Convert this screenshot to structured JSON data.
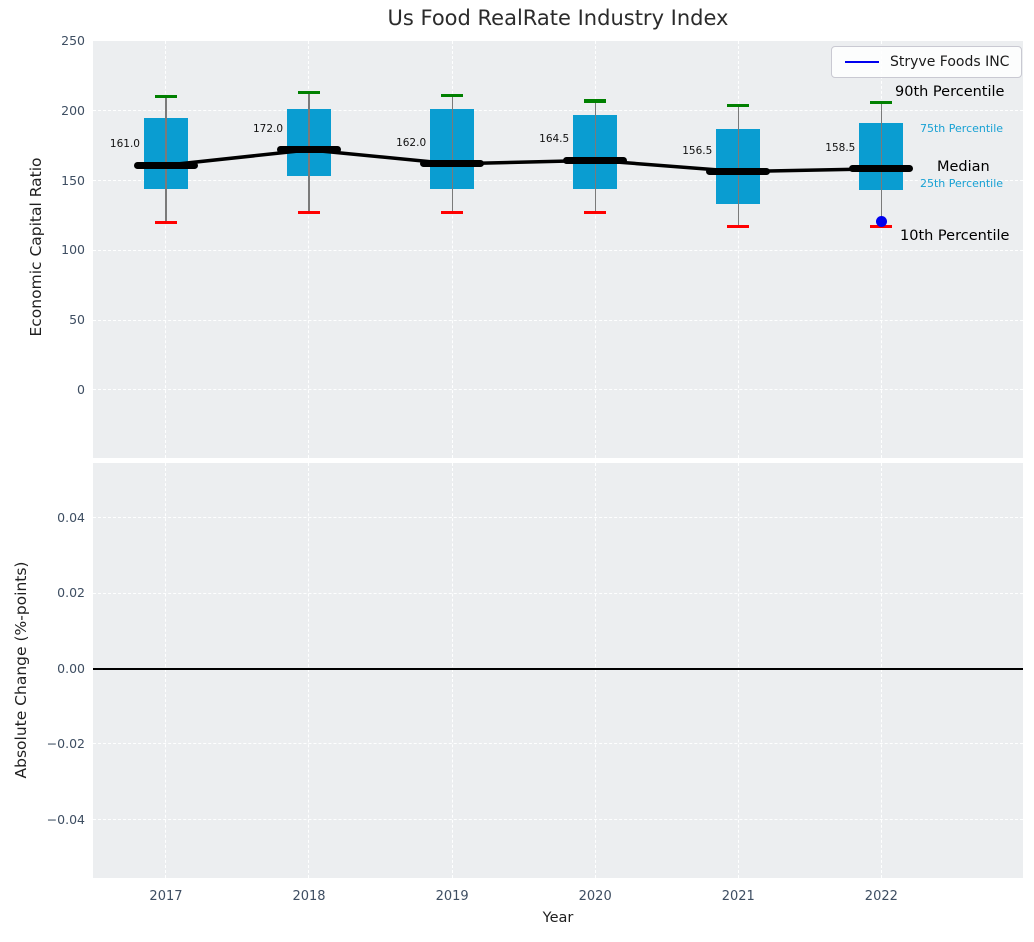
{
  "title": "Us Food RealRate Industry Index",
  "legend": {
    "label": "Stryve Foods INC"
  },
  "colors": {
    "box_fill": "#0a9dd1",
    "median_black": "#000000",
    "cap_top_green": "#008000",
    "cap_bottom_red": "#ff0000",
    "whisker_gray": "#7a7a7a",
    "series_blue": "#0000ee",
    "annotation_cyan": "#17a1d4",
    "axes_background": "#eceef0",
    "tick_text": "#3e4e62"
  },
  "chart_data": [
    {
      "type": "boxplot",
      "title": "Us Food RealRate Industry Index",
      "xlabel": "Year",
      "ylabel": "Economic Capital Ratio",
      "categories": [
        "2017",
        "2018",
        "2019",
        "2020",
        "2021",
        "2022"
      ],
      "ylim": [
        -48.7,
        250
      ],
      "xlim": [
        -0.51,
        5.99
      ],
      "grid": "white-dashed",
      "legend_position": "upper right",
      "yticks": [
        {
          "value": 250,
          "label": "250"
        },
        {
          "value": 200,
          "label": "200"
        },
        {
          "value": 150,
          "label": "150"
        },
        {
          "value": 100,
          "label": "100"
        },
        {
          "value": 50,
          "label": "50"
        },
        {
          "value": 0,
          "label": "0"
        }
      ],
      "boxes": [
        {
          "year": "2017",
          "p10": 120,
          "p25": 144,
          "median": 161.0,
          "p75": 195,
          "p90": 210,
          "median_label": "161.0"
        },
        {
          "year": "2018",
          "p10": 127,
          "p25": 153,
          "median": 172.0,
          "p75": 201,
          "p90": 213,
          "median_label": "172.0"
        },
        {
          "year": "2019",
          "p10": 127,
          "p25": 144,
          "median": 162.0,
          "p75": 201,
          "p90": 211,
          "median_label": "162.0"
        },
        {
          "year": "2020",
          "p10": 127,
          "p25": 144,
          "median": 164.5,
          "p75": 197,
          "p90": 207,
          "median_label": "164.5"
        },
        {
          "year": "2021",
          "p10": 117,
          "p25": 133,
          "median": 156.5,
          "p75": 187,
          "p90": 204,
          "median_label": "156.5"
        },
        {
          "year": "2022",
          "p10": 117,
          "p25": 143,
          "median": 158.5,
          "p75": 191,
          "p90": 206,
          "median_label": "158.5"
        }
      ],
      "median_trend_line": [
        161.0,
        172.0,
        162.0,
        164.5,
        156.5,
        158.5
      ],
      "series": [
        {
          "name": "Stryve Foods INC",
          "type": "scatter",
          "color_key": "series_blue",
          "points": [
            {
              "x": "2022",
              "y": 121
            }
          ]
        }
      ],
      "annotations": [
        {
          "text": "90th Percentile",
          "color_key": "median_black",
          "size": "large"
        },
        {
          "text": "75th Percentile",
          "color_key": "annotation_cyan",
          "size": "small"
        },
        {
          "text": "Median",
          "color_key": "median_black",
          "size": "large"
        },
        {
          "text": "25th Percentile",
          "color_key": "annotation_cyan",
          "size": "small"
        },
        {
          "text": "10th Percentile",
          "color_key": "median_black",
          "size": "large"
        }
      ]
    },
    {
      "type": "line",
      "xlabel": "Year",
      "ylabel": "Absolute Change (%-points)",
      "categories": [
        "2017",
        "2018",
        "2019",
        "2020",
        "2021",
        "2022"
      ],
      "ylim": [
        -0.0555,
        0.0545
      ],
      "grid": "white-dashed",
      "zero_line": 0,
      "yticks": [
        {
          "value": 0.04,
          "label": "0.04"
        },
        {
          "value": 0.02,
          "label": "0.02"
        },
        {
          "value": 0,
          "label": "0.00"
        },
        {
          "value": -0.02,
          "label": "−0.02"
        },
        {
          "value": -0.04,
          "label": "−0.04"
        }
      ],
      "series": []
    }
  ]
}
